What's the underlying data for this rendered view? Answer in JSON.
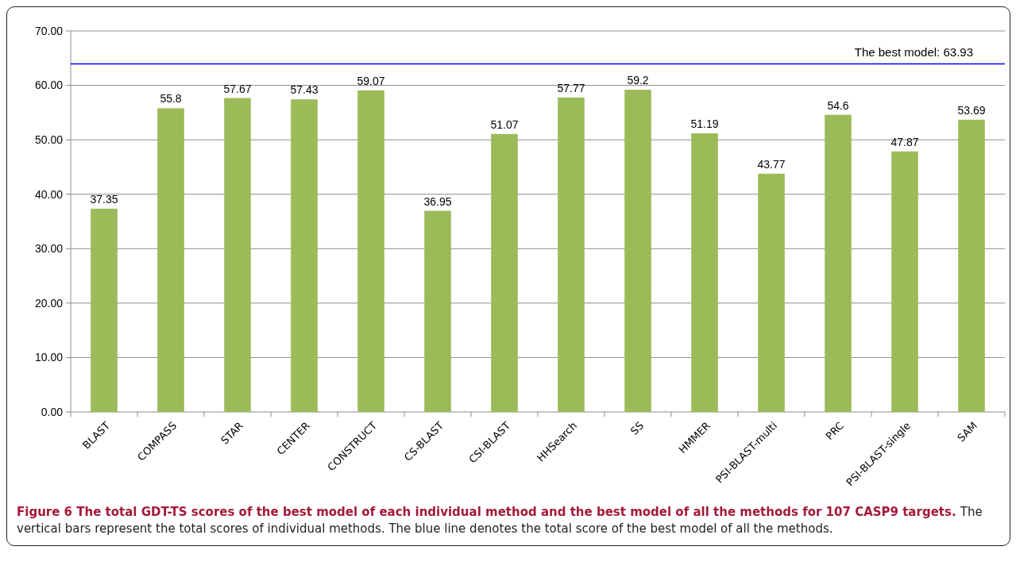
{
  "chart_data": {
    "type": "bar",
    "categories": [
      "BLAST",
      "COMPASS",
      "STAR",
      "CENTER",
      "CONSTRUCT",
      "CS-BLAST",
      "CSI-BLAST",
      "HHSearch",
      "SS",
      "HMMER",
      "PSI-BLAST-multi",
      "PRC",
      "PSI-BLAST-single",
      "SAM"
    ],
    "values": [
      37.35,
      55.8,
      57.67,
      57.43,
      59.07,
      36.95,
      51.07,
      57.77,
      59.2,
      51.19,
      43.77,
      54.6,
      47.87,
      53.69
    ],
    "color": "#9bbb59",
    "ylim": [
      0,
      70
    ],
    "yticks": [
      {
        "value": 0,
        "label": "0.00"
      },
      {
        "value": 10,
        "label": "10.00"
      },
      {
        "value": 20,
        "label": "20.00"
      },
      {
        "value": 30,
        "label": "30.00"
      },
      {
        "value": 40,
        "label": "40.00"
      },
      {
        "value": 50,
        "label": "50.00"
      },
      {
        "value": 60,
        "label": "60.00"
      },
      {
        "value": 70,
        "label": "70.00"
      }
    ],
    "grid": "y",
    "data_labels": true,
    "ref_lines": [
      {
        "axis": "y",
        "value": 63.93,
        "label": "The best model: 63.93",
        "color": "#0000ff"
      }
    ],
    "annotations": [
      "Figure 6 The total GDT-TS scores of the best model of each individual method and the best model of all the methods for 107 CASP9 targets.",
      "The vertical bars represent the total scores of individual methods. The blue line denotes the total score of the best model of all the methods."
    ]
  }
}
